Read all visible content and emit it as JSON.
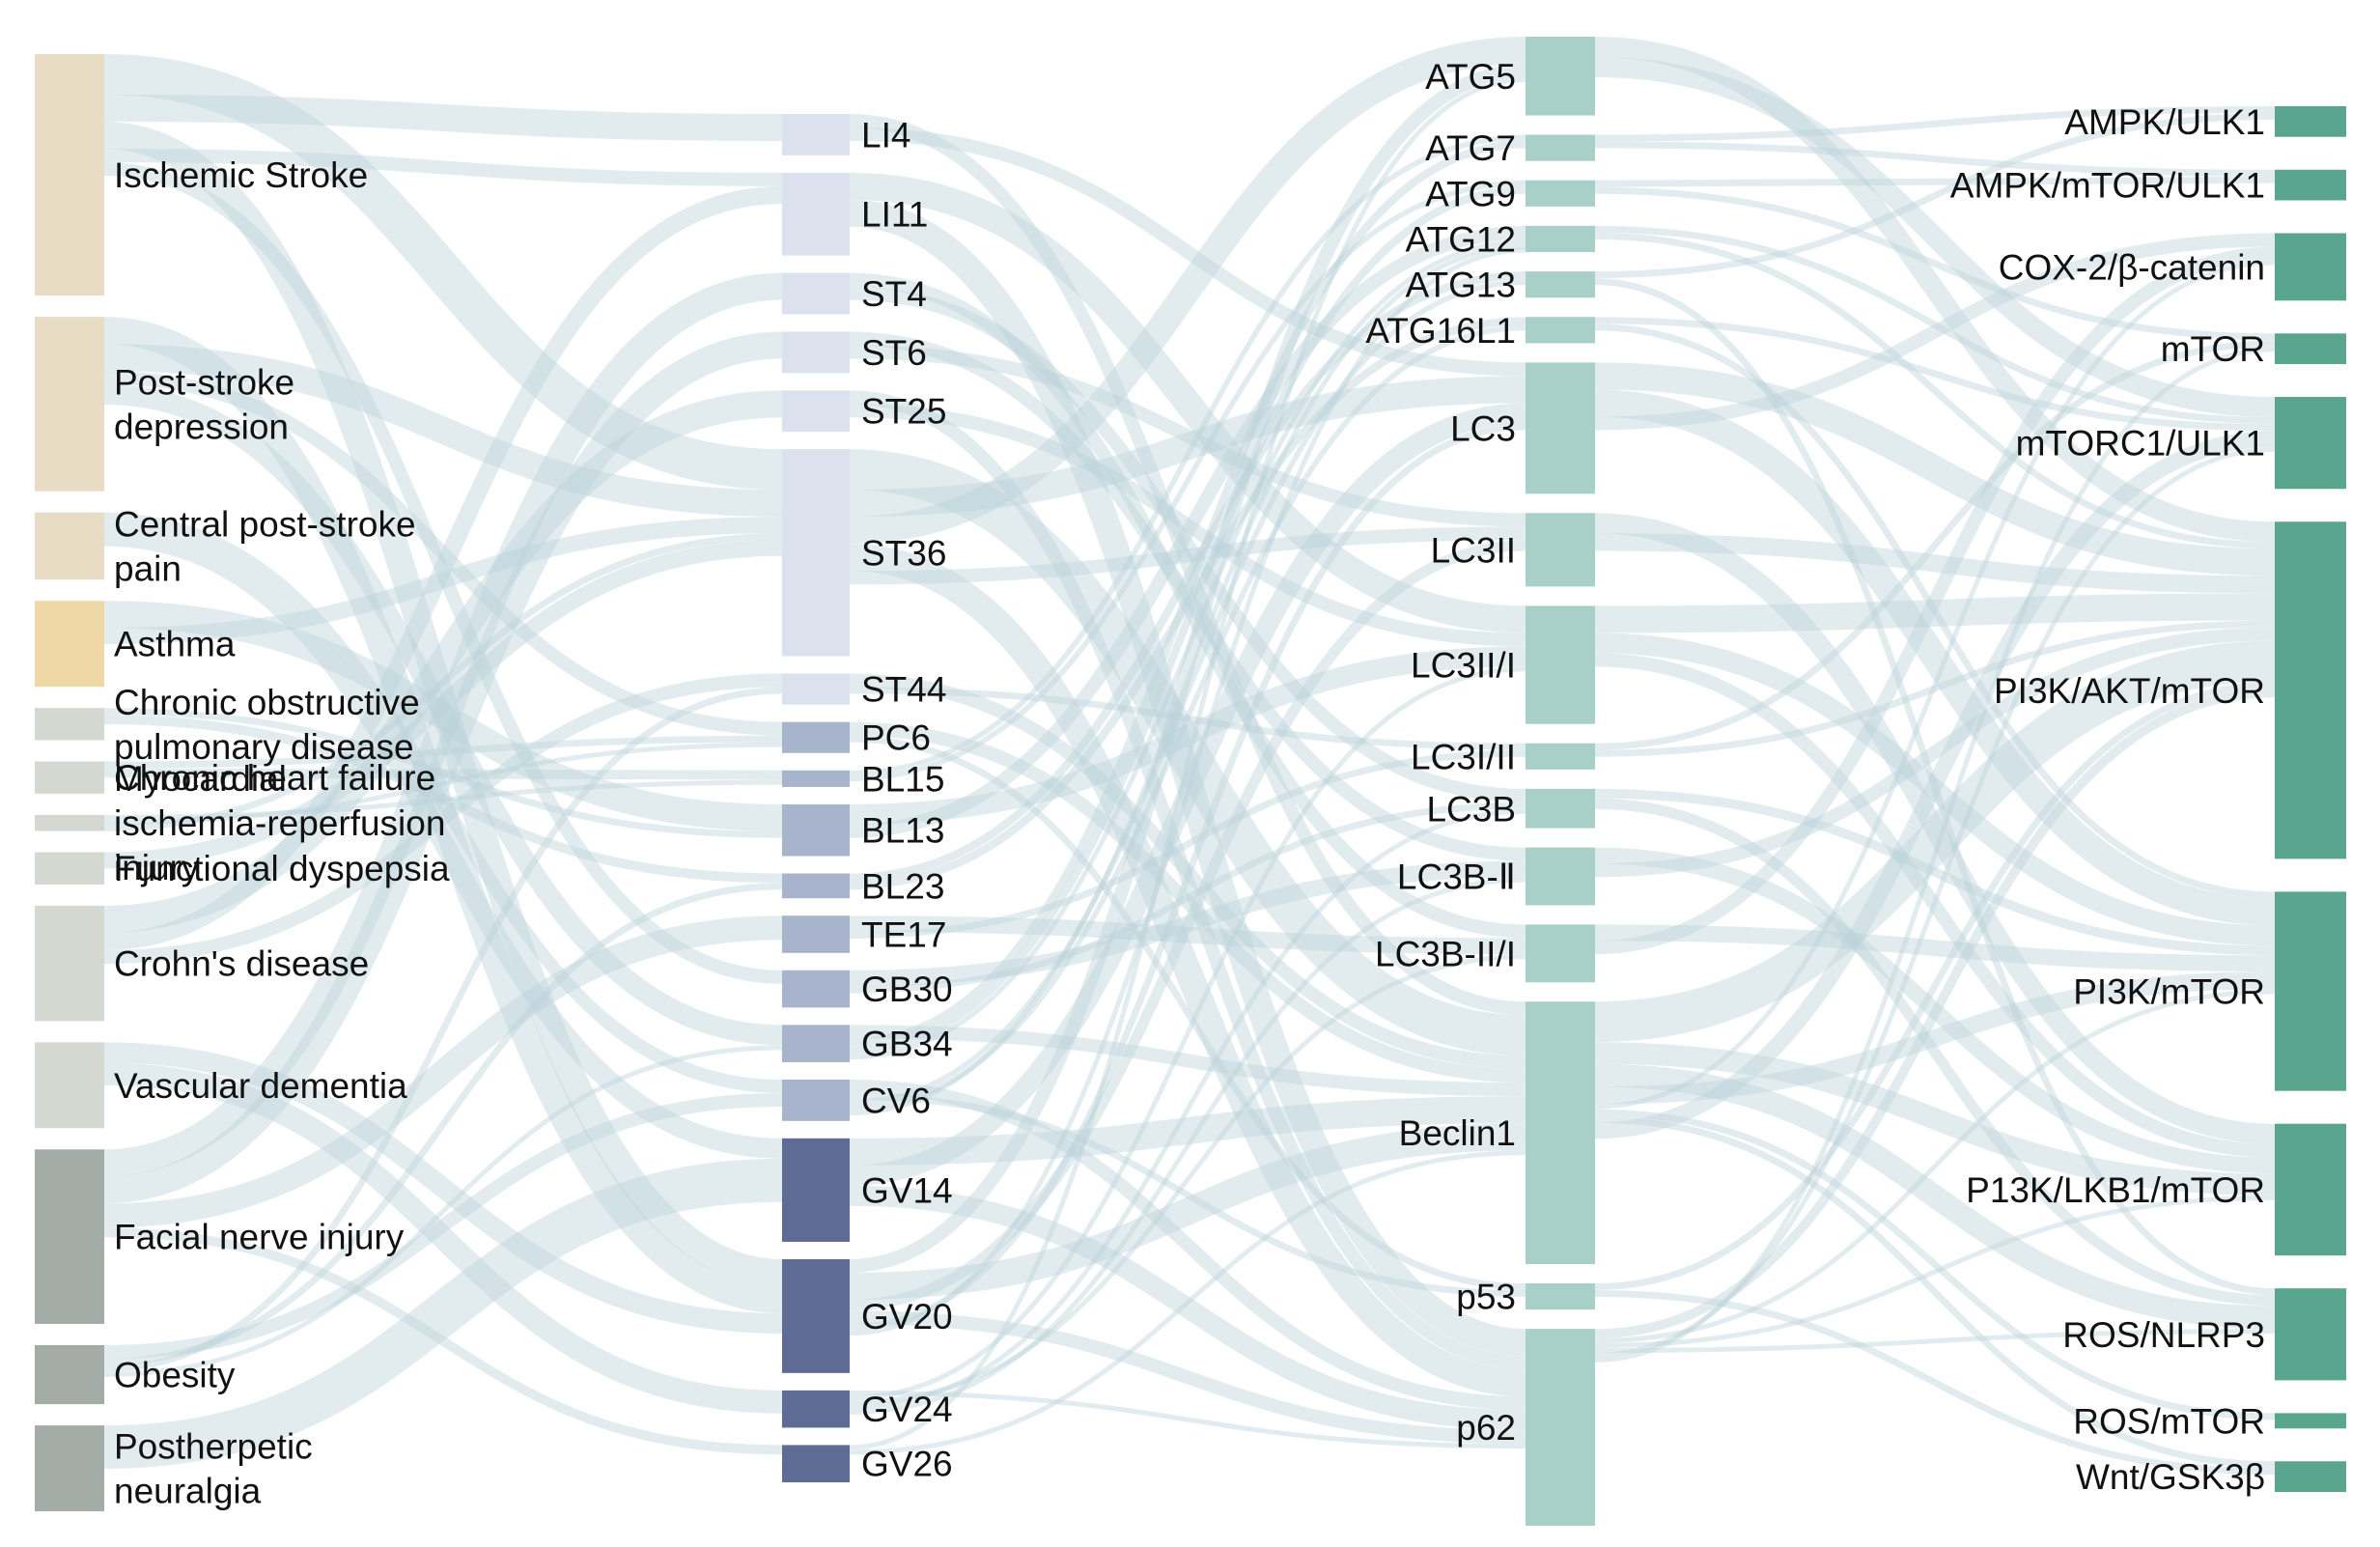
{
  "colors": {
    "disease_light": "#e8dcc4",
    "asthma": "#efd7a6",
    "disease_grey": "#d5d8d0",
    "disease_dark": "#a3aca6",
    "acupoint_light": "#dbe2ee",
    "acupoint_mid": "#a7b4cc",
    "acupoint_dark": "#5e6c95",
    "protein": "#a8d0c9",
    "pathway": "#5aa58d",
    "link": "#b9d2d8"
  },
  "columns": {
    "diseases": [
      {
        "id": "d1",
        "label": "Ischemic Stroke",
        "lines": [
          "Ischemic Stroke"
        ],
        "weight": 9,
        "tone": "light"
      },
      {
        "id": "d2",
        "label": "Post-stroke depression",
        "lines": [
          "Post-stroke",
          "depression"
        ],
        "weight": 6.5,
        "tone": "light"
      },
      {
        "id": "d3",
        "label": "Central post-stroke pain",
        "lines": [
          "Central post-stroke",
          "pain"
        ],
        "weight": 2.5,
        "tone": "light"
      },
      {
        "id": "d4",
        "label": "Asthma",
        "lines": [
          "Asthma"
        ],
        "weight": 3.2,
        "tone": "asthma"
      },
      {
        "id": "d5",
        "label": "Chronic obstructive pulmonary disease",
        "lines": [
          "Chronic obstructive",
          "pulmonary disease"
        ],
        "weight": 1.2,
        "tone": "grey"
      },
      {
        "id": "d6",
        "label": "Chronic heart failure",
        "lines": [
          "Chronic heart failure"
        ],
        "weight": 1.2,
        "tone": "grey"
      },
      {
        "id": "d7",
        "label": "Myocardial ischemia-reperfusion injury",
        "lines": [
          "Myocardial",
          "ischemia-reperfusion",
          "injury"
        ],
        "weight": 0.6,
        "tone": "grey"
      },
      {
        "id": "d8",
        "label": "Functional dyspepsia",
        "lines": [
          "Functional dyspepsia"
        ],
        "weight": 1.2,
        "tone": "grey"
      },
      {
        "id": "d9",
        "label": "Crohn's disease",
        "lines": [
          "Crohn's disease"
        ],
        "weight": 4.3,
        "tone": "grey"
      },
      {
        "id": "d10",
        "label": "Vascular dementia",
        "lines": [
          "Vascular dementia"
        ],
        "weight": 3.2,
        "tone": "grey"
      },
      {
        "id": "d11",
        "label": "Facial nerve injury",
        "lines": [
          "Facial nerve injury"
        ],
        "weight": 6.5,
        "tone": "dark"
      },
      {
        "id": "d12",
        "label": "Obesity",
        "lines": [
          "Obesity"
        ],
        "weight": 2.2,
        "tone": "dark"
      },
      {
        "id": "d13",
        "label": "Postherpetic neuralgia",
        "lines": [
          "Postherpetic",
          "neuralgia"
        ],
        "weight": 3.2,
        "tone": "dark"
      }
    ],
    "acupoints": [
      {
        "id": "a1",
        "label": "LI4",
        "weight": 2,
        "tone": "light"
      },
      {
        "id": "a2",
        "label": "LI11",
        "weight": 4,
        "tone": "light"
      },
      {
        "id": "a3",
        "label": "ST4",
        "weight": 2,
        "tone": "light"
      },
      {
        "id": "a4",
        "label": "ST6",
        "weight": 2,
        "tone": "light"
      },
      {
        "id": "a5",
        "label": "ST25",
        "weight": 2,
        "tone": "light"
      },
      {
        "id": "a6",
        "label": "ST36",
        "weight": 10,
        "tone": "light"
      },
      {
        "id": "a7",
        "label": "ST44",
        "weight": 1.5,
        "tone": "light"
      },
      {
        "id": "a8",
        "label": "PC6",
        "weight": 1.5,
        "tone": "mid"
      },
      {
        "id": "a9",
        "label": "BL15",
        "weight": 0.8,
        "tone": "mid"
      },
      {
        "id": "a10",
        "label": "BL13",
        "weight": 2.5,
        "tone": "mid"
      },
      {
        "id": "a11",
        "label": "BL23",
        "weight": 1.2,
        "tone": "mid"
      },
      {
        "id": "a12",
        "label": "TE17",
        "weight": 1.8,
        "tone": "mid"
      },
      {
        "id": "a13",
        "label": "GB30",
        "weight": 1.8,
        "tone": "mid"
      },
      {
        "id": "a14",
        "label": "GB34",
        "weight": 1.8,
        "tone": "mid"
      },
      {
        "id": "a15",
        "label": "CV6",
        "weight": 2,
        "tone": "mid"
      },
      {
        "id": "a16",
        "label": "GV14",
        "weight": 5,
        "tone": "dark"
      },
      {
        "id": "a17",
        "label": "GV20",
        "weight": 5.5,
        "tone": "dark"
      },
      {
        "id": "a18",
        "label": "GV24",
        "weight": 1.8,
        "tone": "dark"
      },
      {
        "id": "a19",
        "label": "GV26",
        "weight": 1.8,
        "tone": "dark"
      }
    ],
    "proteins": [
      {
        "id": "p1",
        "label": "ATG5",
        "weight": 3
      },
      {
        "id": "p2",
        "label": "ATG7",
        "weight": 1
      },
      {
        "id": "p3",
        "label": "ATG9",
        "weight": 1
      },
      {
        "id": "p4",
        "label": "ATG12",
        "weight": 1
      },
      {
        "id": "p5",
        "label": "ATG13",
        "weight": 1
      },
      {
        "id": "p6",
        "label": "ATG16L1",
        "weight": 1
      },
      {
        "id": "p7",
        "label": "LC3",
        "weight": 5
      },
      {
        "id": "p8",
        "label": "LC3II",
        "weight": 2.8
      },
      {
        "id": "p9",
        "label": "LC3II/I",
        "weight": 4.5
      },
      {
        "id": "p10",
        "label": "LC3I/II",
        "weight": 1
      },
      {
        "id": "p11",
        "label": "LC3B",
        "weight": 1.5
      },
      {
        "id": "p12",
        "label": "LC3B-Ⅱ",
        "weight": 2.2
      },
      {
        "id": "p13",
        "label": "LC3B-II/I",
        "weight": 2.2
      },
      {
        "id": "p14",
        "label": "Beclin1",
        "weight": 10
      },
      {
        "id": "p15",
        "label": "p53",
        "weight": 1
      },
      {
        "id": "p16",
        "label": "p62",
        "weight": 7.5
      }
    ],
    "pathways": [
      {
        "id": "w1",
        "label": "AMPK/ULK1",
        "weight": 1
      },
      {
        "id": "w2",
        "label": "AMPK/mTOR/ULK1",
        "weight": 1
      },
      {
        "id": "w3",
        "label": "COX-2/β-catenin",
        "weight": 2.2
      },
      {
        "id": "w4",
        "label": "mTOR",
        "weight": 1
      },
      {
        "id": "w5",
        "label": "mTORC1/ULK1",
        "weight": 3
      },
      {
        "id": "w6",
        "label": "PI3K/AKT/mTOR",
        "weight": 11
      },
      {
        "id": "w7",
        "label": "PI3K/mTOR",
        "weight": 6.5
      },
      {
        "id": "w8",
        "label": "P13K/LKB1/mTOR",
        "weight": 4.3
      },
      {
        "id": "w9",
        "label": "ROS/NLRP3",
        "weight": 3
      },
      {
        "id": "w10",
        "label": "ROS/mTOR",
        "weight": 0.5
      },
      {
        "id": "w11",
        "label": "Wnt/GSK3β",
        "weight": 1
      }
    ]
  },
  "links": [
    [
      "d1",
      "a6",
      3
    ],
    [
      "d1",
      "a1",
      2
    ],
    [
      "d1",
      "a17",
      2
    ],
    [
      "d1",
      "a2",
      1
    ],
    [
      "d1",
      "a13",
      1
    ],
    [
      "d2",
      "a17",
      2
    ],
    [
      "d2",
      "a6",
      2
    ],
    [
      "d2",
      "a8",
      1
    ],
    [
      "d2",
      "a14",
      1.5
    ],
    [
      "d3",
      "a15",
      1
    ],
    [
      "d3",
      "a16",
      1.5
    ],
    [
      "d4",
      "a10",
      2
    ],
    [
      "d4",
      "a6",
      1.2
    ],
    [
      "d5",
      "a10",
      0.5
    ],
    [
      "d5",
      "a11",
      0.7
    ],
    [
      "d6",
      "a8",
      0.5
    ],
    [
      "d6",
      "a9",
      0.7
    ],
    [
      "d7",
      "a9",
      0.1
    ],
    [
      "d7",
      "a8",
      0
    ],
    [
      "d7",
      "a6",
      0.5
    ],
    [
      "d8",
      "a6",
      1.2
    ],
    [
      "d9",
      "a5",
      2
    ],
    [
      "d9",
      "a2",
      1.3
    ],
    [
      "d9",
      "a7",
      1
    ],
    [
      "d10",
      "a17",
      1.5
    ],
    [
      "d10",
      "a18",
      1.7
    ],
    [
      "d11",
      "a3",
      2
    ],
    [
      "d11",
      "a4",
      2
    ],
    [
      "d11",
      "a12",
      1.8
    ],
    [
      "d11",
      "a19",
      0.7
    ],
    [
      "d12",
      "a15",
      1
    ],
    [
      "d12",
      "a11",
      0.5
    ],
    [
      "d12",
      "a7",
      0.5
    ],
    [
      "d12",
      "a14",
      0.2
    ],
    [
      "d13",
      "a16",
      3.2
    ],
    [
      "a1",
      "p14",
      1
    ],
    [
      "a1",
      "p7",
      1
    ],
    [
      "a2",
      "p9",
      2
    ],
    [
      "a2",
      "p16",
      2
    ],
    [
      "a3",
      "p13",
      1
    ],
    [
      "a3",
      "p11",
      1
    ],
    [
      "a4",
      "p12",
      1
    ],
    [
      "a4",
      "p8",
      1
    ],
    [
      "a5",
      "p16",
      1
    ],
    [
      "a5",
      "p9",
      1
    ],
    [
      "a6",
      "p14",
      3
    ],
    [
      "a6",
      "p7",
      2
    ],
    [
      "a6",
      "p1",
      2
    ],
    [
      "a6",
      "p16",
      2
    ],
    [
      "a6",
      "p8",
      1
    ],
    [
      "a7",
      "p14",
      1
    ],
    [
      "a7",
      "p10",
      0.5
    ],
    [
      "a8",
      "p14",
      1
    ],
    [
      "a8",
      "p15",
      0.5
    ],
    [
      "a9",
      "p2",
      0.4
    ],
    [
      "a9",
      "p3",
      0.4
    ],
    [
      "a10",
      "p9",
      1.5
    ],
    [
      "a10",
      "p4",
      1
    ],
    [
      "a11",
      "p5",
      0.6
    ],
    [
      "a11",
      "p6",
      0.6
    ],
    [
      "a12",
      "p13",
      1.2
    ],
    [
      "a12",
      "p10",
      0.5
    ],
    [
      "a13",
      "p12",
      1.2
    ],
    [
      "a13",
      "p11",
      0.5
    ],
    [
      "a14",
      "p14",
      1
    ],
    [
      "a14",
      "p2",
      0.6
    ],
    [
      "a14",
      "p3",
      0.6
    ],
    [
      "a14",
      "p4",
      0
    ],
    [
      "a15",
      "p16",
      1
    ],
    [
      "a15",
      "p15",
      0.5
    ],
    [
      "a15",
      "p5",
      0.4
    ],
    [
      "a15",
      "p6",
      0.4
    ],
    [
      "a15",
      "p4",
      0
    ],
    [
      "a16",
      "p14",
      2
    ],
    [
      "a16",
      "p7",
      1.5
    ],
    [
      "a16",
      "p16",
      1.5
    ],
    [
      "a17",
      "p1",
      1
    ],
    [
      "a17",
      "p14",
      2
    ],
    [
      "a17",
      "p8",
      0.8
    ],
    [
      "a17",
      "p16",
      1
    ],
    [
      "a17",
      "p7",
      0.5
    ],
    [
      "a17",
      "p4",
      0
    ],
    [
      "a18",
      "p16",
      0
    ],
    [
      "a18",
      "p9",
      0
    ],
    [
      "a18",
      "p13",
      0
    ],
    [
      "a18",
      "p11",
      0
    ],
    [
      "a18",
      "p12",
      0
    ],
    [
      "a19",
      "p1",
      0
    ],
    [
      "a19",
      "p14",
      0
    ],
    [
      "p1",
      "w6",
      1.5
    ],
    [
      "p1",
      "w5",
      1.5
    ],
    [
      "p2",
      "w1",
      0.5
    ],
    [
      "p2",
      "w2",
      0.5
    ],
    [
      "p3",
      "w2",
      0.5
    ],
    [
      "p3",
      "w4",
      0.5
    ],
    [
      "p4",
      "w5",
      0.5
    ],
    [
      "p4",
      "w6",
      0.5
    ],
    [
      "p5",
      "w1",
      0.5
    ],
    [
      "p5",
      "w9",
      0.5
    ],
    [
      "p6",
      "w5",
      0.5
    ],
    [
      "p6",
      "w7",
      0.5
    ],
    [
      "p7",
      "w6",
      2
    ],
    [
      "p7",
      "w7",
      2
    ],
    [
      "p7",
      "w3",
      1
    ],
    [
      "p8",
      "w8",
      1.5
    ],
    [
      "p8",
      "w6",
      1.3
    ],
    [
      "p9",
      "w6",
      2
    ],
    [
      "p9",
      "w7",
      1.5
    ],
    [
      "p9",
      "w8",
      1
    ],
    [
      "p10",
      "w4",
      0.5
    ],
    [
      "p10",
      "w6",
      0.5
    ],
    [
      "p11",
      "w7",
      0.7
    ],
    [
      "p11",
      "w9",
      0.8
    ],
    [
      "p12",
      "w8",
      1.2
    ],
    [
      "p12",
      "w6",
      1
    ],
    [
      "p13",
      "w7",
      1.2
    ],
    [
      "p13",
      "w3",
      1
    ],
    [
      "p14",
      "w6",
      3
    ],
    [
      "p14",
      "w8",
      1.6
    ],
    [
      "p14",
      "w9",
      1.7
    ],
    [
      "p14",
      "w7",
      1.3
    ],
    [
      "p14",
      "w3",
      0.2
    ],
    [
      "p14",
      "w10",
      0.5
    ],
    [
      "p14",
      "w11",
      0.5
    ],
    [
      "p14",
      "w5",
      1.2
    ],
    [
      "p15",
      "w6",
      0.5
    ],
    [
      "p15",
      "w11",
      0.5
    ],
    [
      "p16",
      "w6",
      0.7
    ],
    [
      "p16",
      "w7",
      0
    ],
    [
      "p16",
      "w8",
      0
    ],
    [
      "p16",
      "w9",
      0
    ],
    [
      "p16",
      "w5",
      0
    ],
    [
      "p16",
      "w4",
      0
    ]
  ]
}
